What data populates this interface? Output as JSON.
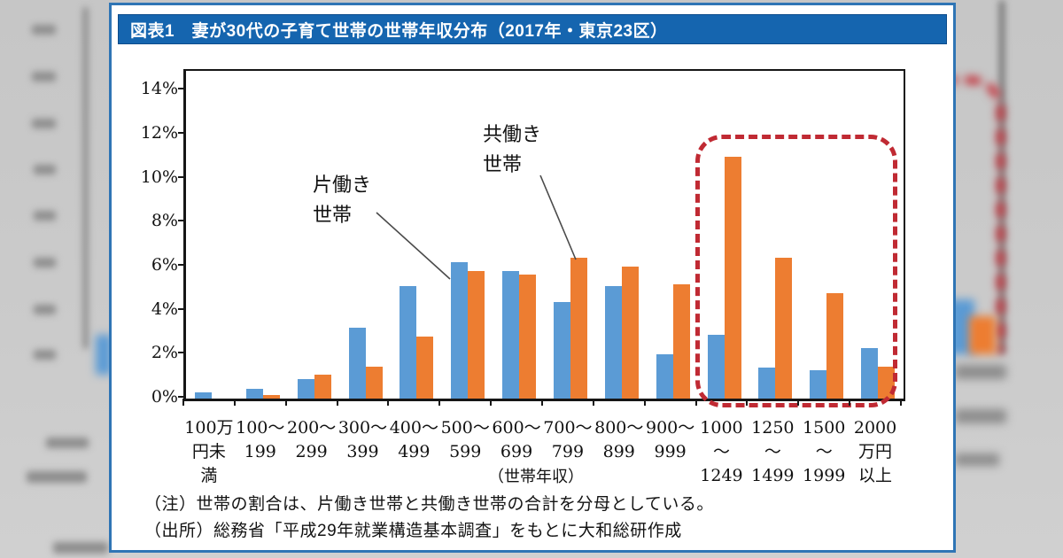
{
  "card": {
    "title": "図表1　妻が30代の子育て世帯の世帯年収分布（2017年・東京23区）",
    "notes": [
      "（注）世帯の割合は、片働き世帯と共働き世帯の合計を分母としている。",
      "（出所）総務省「平成29年就業構造基本調査」をもとに大和総研作成"
    ]
  },
  "chart_data": {
    "type": "bar",
    "title": "図表1　妻が30代の子育て世帯の世帯年収分布（2017年・東京23区）",
    "categories": [
      "100万円未満",
      "100～199",
      "200～299",
      "300～399",
      "400～499",
      "500～599",
      "600～699",
      "700～799",
      "800～899",
      "900～999",
      "1000～1249",
      "1250～1499",
      "1500～1999",
      "2000万円以上"
    ],
    "categories_display": [
      [
        "100万",
        "円未",
        "満"
      ],
      [
        "100～",
        "199"
      ],
      [
        "200～",
        "299"
      ],
      [
        "300～",
        "399"
      ],
      [
        "400～",
        "499"
      ],
      [
        "500～",
        "599"
      ],
      [
        "600～",
        "699"
      ],
      [
        "700～",
        "799"
      ],
      [
        "800～",
        "899"
      ],
      [
        "900～",
        "999"
      ],
      [
        "1000",
        "～",
        "1249"
      ],
      [
        "1250",
        "～",
        "1499"
      ],
      [
        "1500",
        "～",
        "1999"
      ],
      [
        "2000",
        "万円",
        "以上"
      ]
    ],
    "series": [
      {
        "name": "片働き世帯",
        "color": "#5b9bd5",
        "values": [
          0.3,
          0.45,
          0.9,
          3.2,
          5.1,
          6.2,
          5.8,
          4.4,
          5.1,
          2.0,
          2.9,
          1.4,
          1.3,
          2.3
        ]
      },
      {
        "name": "共働き世帯",
        "color": "#ed7d31",
        "values": [
          0.0,
          0.15,
          1.1,
          1.45,
          2.8,
          5.8,
          5.65,
          6.4,
          6.0,
          5.2,
          11.0,
          6.4,
          4.8,
          1.45
        ]
      }
    ],
    "xlabel": "（世帯年収）",
    "ylabel": "",
    "y_ticks": [
      "0%",
      "2%",
      "4%",
      "6%",
      "8%",
      "10%",
      "12%",
      "14%"
    ],
    "ylim": [
      0,
      14.9
    ],
    "grid": false,
    "legend_position": "in-plot annotations with leader lines",
    "annotations": [
      {
        "text_lines": [
          "片働き",
          "世帯"
        ],
        "series": "片働き世帯",
        "points_to": "500～599の片働き世帯の棒"
      },
      {
        "text_lines": [
          "共働き",
          "世帯"
        ],
        "series": "共働き世帯",
        "points_to": "700～799の共働き世帯の棒"
      }
    ],
    "highlight": {
      "shape": "dashed-rounded-rectangle",
      "color": "#c02a33",
      "covers": "1000万円以上の4区分（1000～1249・1250～1499・1500～1999・2000万円以上）"
    }
  }
}
